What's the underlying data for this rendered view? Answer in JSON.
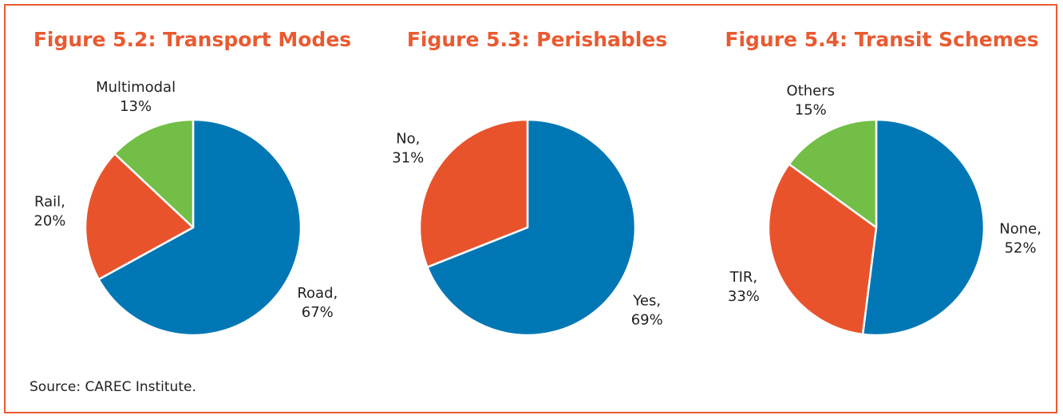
{
  "chart_data": [
    {
      "type": "pie",
      "title": "Figure 5.2: Transport Modes",
      "slices": [
        {
          "label": "Road,",
          "pct_text": "67%",
          "value": 67,
          "color": "#0077b5"
        },
        {
          "label": "Rail,",
          "pct_text": "20%",
          "value": 20,
          "color": "#e9532c"
        },
        {
          "label": "Multimodal",
          "pct_text": "13%",
          "value": 13,
          "color": "#72be46"
        }
      ]
    },
    {
      "type": "pie",
      "title": "Figure 5.3: Perishables",
      "slices": [
        {
          "label": "Yes,",
          "pct_text": "69%",
          "value": 69,
          "color": "#0077b5"
        },
        {
          "label": "No,",
          "pct_text": "31%",
          "value": 31,
          "color": "#e9532c"
        }
      ]
    },
    {
      "type": "pie",
      "title": "Figure 5.4: Transit Schemes",
      "slices": [
        {
          "label": "None,",
          "pct_text": "52%",
          "value": 52,
          "color": "#0077b5"
        },
        {
          "label": "TIR,",
          "pct_text": "33%",
          "value": 33,
          "color": "#e9532c"
        },
        {
          "label": "Others",
          "pct_text": "15%",
          "value": 15,
          "color": "#72be46"
        }
      ]
    }
  ],
  "source": "Source: CAREC Institute."
}
